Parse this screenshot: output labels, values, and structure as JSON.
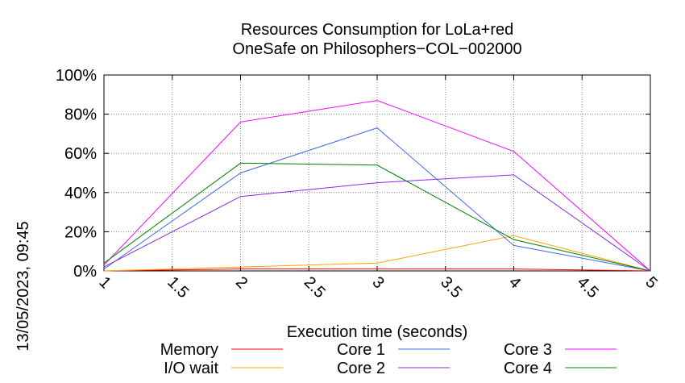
{
  "chart_data": {
    "type": "line",
    "title": "Resources Consumption for LoLa+red",
    "subtitle": "OneSafe on Philosophers−COL−002000",
    "xlabel": "Execution time (seconds)",
    "ylabel": "",
    "side_label": "13/05/2023, 09:45",
    "xlim": [
      1,
      5
    ],
    "ylim": [
      0,
      100
    ],
    "x_ticks": [
      "1",
      "1.5",
      "2",
      "2.5",
      "3",
      "3.5",
      "4",
      "4.5",
      "5"
    ],
    "y_ticks": [
      "0%",
      "20%",
      "40%",
      "60%",
      "80%",
      "100%"
    ],
    "grid": true,
    "legend_position": "bottom",
    "x": [
      1,
      2,
      3,
      4,
      5
    ],
    "series": [
      {
        "name": "Memory",
        "color": "#ff0000",
        "values": [
          0,
          1,
          1,
          1,
          0
        ]
      },
      {
        "name": "I/O wait",
        "color": "#ffa500",
        "values": [
          0,
          2,
          4,
          18,
          0
        ]
      },
      {
        "name": "Core 1",
        "color": "#4169e1",
        "values": [
          1,
          50,
          73,
          13,
          0
        ]
      },
      {
        "name": "Core 2",
        "color": "#8a2be2",
        "values": [
          2,
          38,
          45,
          49,
          0
        ]
      },
      {
        "name": "Core 3",
        "color": "#ff00ff",
        "values": [
          3,
          76,
          87,
          61,
          0
        ]
      },
      {
        "name": "Core 4",
        "color": "#008000",
        "values": [
          4,
          55,
          54,
          16,
          0
        ]
      }
    ]
  }
}
